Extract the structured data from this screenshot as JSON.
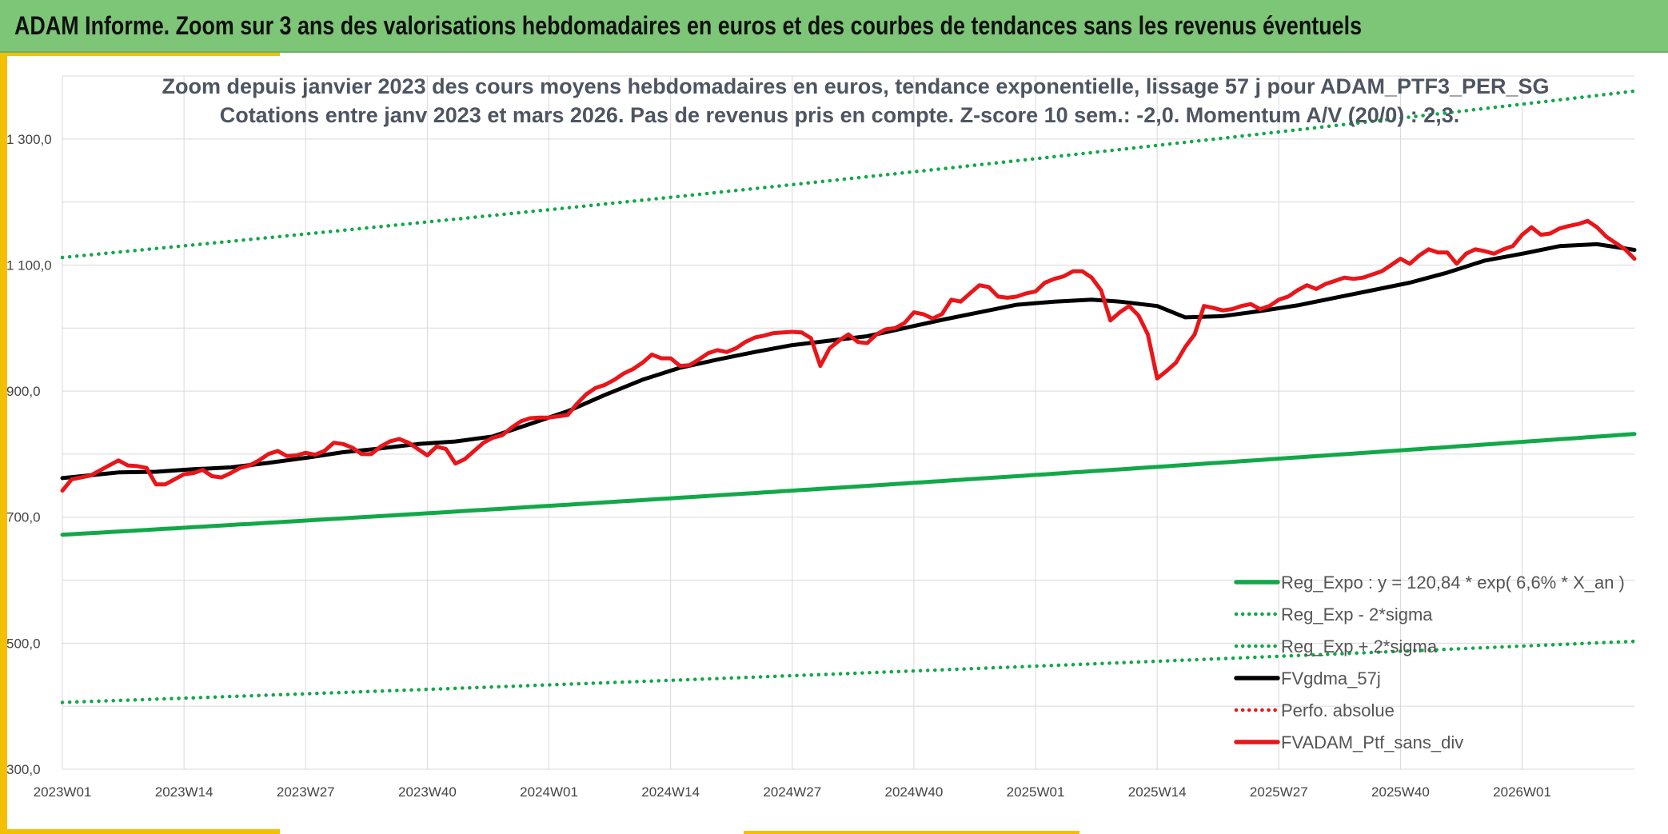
{
  "banner": {
    "title": "ADAM Informe. Zoom sur 3 ans des valorisations hebdomadaires en euros et des courbes de tendances sans les revenus éventuels"
  },
  "chart_data": {
    "type": "line",
    "title": "Zoom depuis janvier 2023 des cours moyens hebdomadaires en euros, tendance exponentielle, lissage 57 j pour ADAM_PTF3_PER_SG",
    "subtitle": "Cotations entre janv 2023 et mars 2026. Pas de revenus pris en compte. Z-score 10 sem.: -2,0. Momentum A/V (20/0) : 2,3.",
    "xlabel": "",
    "ylabel": "",
    "ylim": [
      300,
      1400
    ],
    "y_ticks": [
      "300,0",
      "500,0",
      "700,0",
      "900,0",
      "1 100,0",
      "1 300,0"
    ],
    "y_tick_values": [
      300,
      500,
      700,
      900,
      1100,
      1300
    ],
    "x_range_weeks": [
      0,
      168
    ],
    "x_ticks": [
      "2023W01",
      "2023W14",
      "2023W27",
      "2023W40",
      "2024W01",
      "2024W14",
      "2024W27",
      "2024W40",
      "2025W01",
      "2025W14",
      "2025W27",
      "2025W40",
      "2026W01"
    ],
    "x_tick_weeks": [
      0,
      13,
      26,
      39,
      52,
      65,
      78,
      91,
      104,
      117,
      130,
      143,
      156
    ],
    "grid": true,
    "legend_position": "bottom-right",
    "series": [
      {
        "name": "Reg_Expo : y = 120,84 * exp( 6,6% *  X_an )",
        "style": "solid",
        "color": "#12a84a",
        "x": [
          0,
          168
        ],
        "y": [
          672,
          832
        ],
        "curve": "exponential"
      },
      {
        "name": "Reg_Exp - 2*sigma",
        "style": "dotted",
        "color": "#12a84a",
        "x": [
          0,
          168
        ],
        "y": [
          406,
          503
        ],
        "curve": "exponential"
      },
      {
        "name": "Reg_Exp + 2*sigma",
        "style": "dotted",
        "color": "#12a84a",
        "x": [
          0,
          168
        ],
        "y": [
          1112,
          1376
        ],
        "curve": "exponential"
      },
      {
        "name": "FVgdma_57j",
        "style": "solid",
        "color": "#000000",
        "x": [
          0,
          6,
          10,
          14,
          18,
          22,
          26,
          30,
          34,
          38,
          42,
          46,
          50,
          54,
          58,
          62,
          66,
          70,
          74,
          78,
          82,
          86,
          90,
          94,
          98,
          102,
          106,
          110,
          113,
          117,
          120,
          124,
          128,
          132,
          136,
          140,
          144,
          148,
          152,
          156,
          160,
          164,
          168
        ],
        "y": [
          762,
          771,
          772,
          776,
          779,
          786,
          794,
          803,
          809,
          816,
          820,
          828,
          848,
          868,
          894,
          918,
          937,
          950,
          962,
          973,
          980,
          987,
          1000,
          1013,
          1025,
          1037,
          1042,
          1045,
          1042,
          1035,
          1017,
          1019,
          1027,
          1036,
          1048,
          1060,
          1072,
          1088,
          1107,
          1118,
          1130,
          1133,
          1124
        ]
      },
      {
        "name": "Perfo. absolue",
        "style": "dotted",
        "color": "#e8161a",
        "x": [],
        "y": []
      },
      {
        "name": "FVADAM_Ptf_sans_div",
        "style": "solid",
        "color": "#e8161a",
        "x": [
          0,
          1,
          3,
          5,
          6,
          7,
          8,
          9,
          10,
          11,
          12,
          13,
          14,
          15,
          16,
          17,
          18,
          19,
          20,
          21,
          22,
          23,
          24,
          25,
          26,
          27,
          28,
          29,
          30,
          31,
          32,
          33,
          34,
          35,
          36,
          37,
          38,
          39,
          40,
          41,
          42,
          43,
          44,
          45,
          46,
          47,
          48,
          49,
          50,
          51,
          52,
          53,
          54,
          55,
          56,
          57,
          58,
          59,
          60,
          61,
          62,
          63,
          64,
          65,
          66,
          67,
          68,
          69,
          70,
          71,
          72,
          73,
          74,
          75,
          76,
          77,
          78,
          79,
          80,
          81,
          82,
          83,
          84,
          85,
          86,
          87,
          88,
          89,
          90,
          91,
          92,
          93,
          94,
          95,
          96,
          97,
          98,
          99,
          100,
          101,
          102,
          103,
          104,
          105,
          106,
          107,
          108,
          109,
          110,
          111,
          112,
          113,
          114,
          115,
          116,
          117,
          118,
          119,
          120,
          121,
          122,
          123,
          124,
          125,
          126,
          127,
          128,
          129,
          130,
          131,
          132,
          133,
          134,
          135,
          136,
          137,
          138,
          139,
          140,
          141,
          142,
          143,
          144,
          145,
          146,
          147,
          148,
          149,
          150,
          151,
          152,
          153,
          154,
          155,
          156,
          157,
          158,
          159,
          160,
          161,
          162,
          163,
          164,
          165,
          166,
          167,
          168
        ],
        "y": [
          742,
          760,
          766,
          782,
          790,
          782,
          781,
          778,
          752,
          752,
          760,
          768,
          770,
          775,
          765,
          763,
          770,
          778,
          782,
          790,
          800,
          805,
          797,
          798,
          802,
          799,
          805,
          818,
          816,
          810,
          800,
          800,
          812,
          820,
          824,
          818,
          808,
          798,
          812,
          808,
          785,
          792,
          805,
          818,
          826,
          830,
          842,
          852,
          857,
          858,
          858,
          860,
          862,
          880,
          895,
          905,
          910,
          918,
          928,
          935,
          945,
          958,
          952,
          952,
          940,
          941,
          950,
          960,
          965,
          962,
          968,
          978,
          985,
          988,
          992,
          993,
          994,
          993,
          984,
          940,
          968,
          980,
          990,
          978,
          976,
          990,
          998,
          1000,
          1008,
          1025,
          1022,
          1015,
          1022,
          1045,
          1042,
          1055,
          1068,
          1065,
          1050,
          1048,
          1050,
          1055,
          1058,
          1072,
          1078,
          1082,
          1090,
          1090,
          1080,
          1060,
          1012,
          1025,
          1035,
          1020,
          990,
          920,
          932,
          945,
          970,
          990,
          1035,
          1032,
          1028,
          1030,
          1035,
          1038,
          1030,
          1035,
          1045,
          1050,
          1060,
          1068,
          1062,
          1070,
          1075,
          1080,
          1078,
          1080,
          1085,
          1090,
          1100,
          1110,
          1102,
          1115,
          1125,
          1120,
          1120,
          1102,
          1118,
          1125,
          1122,
          1118,
          1125,
          1130,
          1148,
          1160,
          1148,
          1150,
          1158,
          1162,
          1165,
          1170,
          1160,
          1145,
          1135,
          1125,
          1110
        ]
      }
    ]
  }
}
